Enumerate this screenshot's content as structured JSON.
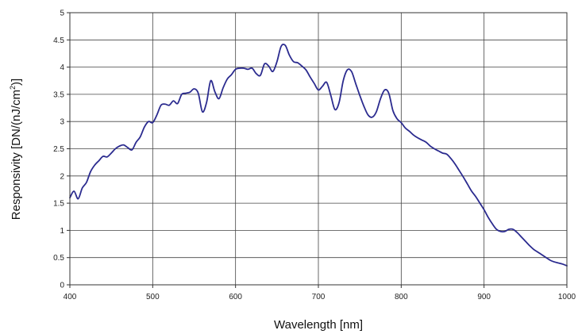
{
  "chart_data": {
    "type": "line",
    "xlabel": "Wavelength [nm]",
    "ylabel": "Responsivity [DN/(nJ/cm",
    "ylabel_sup": "2",
    "ylabel_end": ")]",
    "xlim": [
      400,
      1000
    ],
    "ylim": [
      0,
      5
    ],
    "x_ticks": [
      "400",
      "500",
      "600",
      "700",
      "800",
      "900",
      "1000"
    ],
    "y_ticks": [
      "0",
      "0.5",
      "1",
      "1.5",
      "2",
      "2.5",
      "3",
      "3.5",
      "4",
      "4.5",
      "5"
    ],
    "grid": true,
    "line_color": "#2b2b8f",
    "series": [
      {
        "x": [
          400,
          405,
          410,
          415,
          420,
          425,
          430,
          435,
          440,
          445,
          450,
          455,
          460,
          465,
          470,
          475,
          480,
          485,
          490,
          495,
          500,
          505,
          510,
          515,
          520,
          525,
          530,
          535,
          540,
          545,
          550,
          555,
          560,
          565,
          570,
          575,
          580,
          585,
          590,
          595,
          600,
          605,
          610,
          615,
          620,
          625,
          630,
          635,
          640,
          645,
          650,
          655,
          660,
          665,
          670,
          675,
          680,
          685,
          690,
          695,
          700,
          705,
          710,
          715,
          720,
          725,
          730,
          735,
          740,
          745,
          750,
          755,
          760,
          765,
          770,
          775,
          780,
          785,
          790,
          795,
          800,
          805,
          810,
          815,
          820,
          825,
          830,
          835,
          840,
          845,
          850,
          855,
          860,
          865,
          870,
          875,
          880,
          885,
          890,
          895,
          900,
          905,
          910,
          915,
          920,
          925,
          930,
          935,
          940,
          945,
          950,
          955,
          960,
          965,
          970,
          975,
          980,
          985,
          990,
          995,
          1000
        ],
        "y": [
          1.6,
          1.72,
          1.58,
          1.78,
          1.88,
          2.08,
          2.2,
          2.28,
          2.36,
          2.35,
          2.42,
          2.5,
          2.55,
          2.57,
          2.52,
          2.48,
          2.62,
          2.72,
          2.9,
          3.0,
          2.98,
          3.12,
          3.3,
          3.32,
          3.3,
          3.38,
          3.33,
          3.5,
          3.52,
          3.54,
          3.6,
          3.52,
          3.18,
          3.35,
          3.75,
          3.55,
          3.42,
          3.62,
          3.78,
          3.86,
          3.96,
          3.98,
          3.98,
          3.96,
          3.98,
          3.88,
          3.85,
          4.06,
          4.02,
          3.92,
          4.1,
          4.38,
          4.4,
          4.22,
          4.1,
          4.08,
          4.02,
          3.95,
          3.82,
          3.7,
          3.58,
          3.65,
          3.72,
          3.48,
          3.22,
          3.35,
          3.75,
          3.95,
          3.92,
          3.7,
          3.48,
          3.28,
          3.12,
          3.08,
          3.18,
          3.42,
          3.58,
          3.52,
          3.2,
          3.05,
          2.98,
          2.88,
          2.82,
          2.75,
          2.7,
          2.66,
          2.62,
          2.55,
          2.5,
          2.46,
          2.42,
          2.4,
          2.32,
          2.22,
          2.1,
          1.98,
          1.85,
          1.72,
          1.62,
          1.5,
          1.38,
          1.24,
          1.12,
          1.02,
          0.98,
          0.98,
          1.02,
          1.02,
          0.96,
          0.88,
          0.8,
          0.72,
          0.65,
          0.6,
          0.55,
          0.5,
          0.45,
          0.42,
          0.4,
          0.38,
          0.35
        ]
      }
    ]
  }
}
